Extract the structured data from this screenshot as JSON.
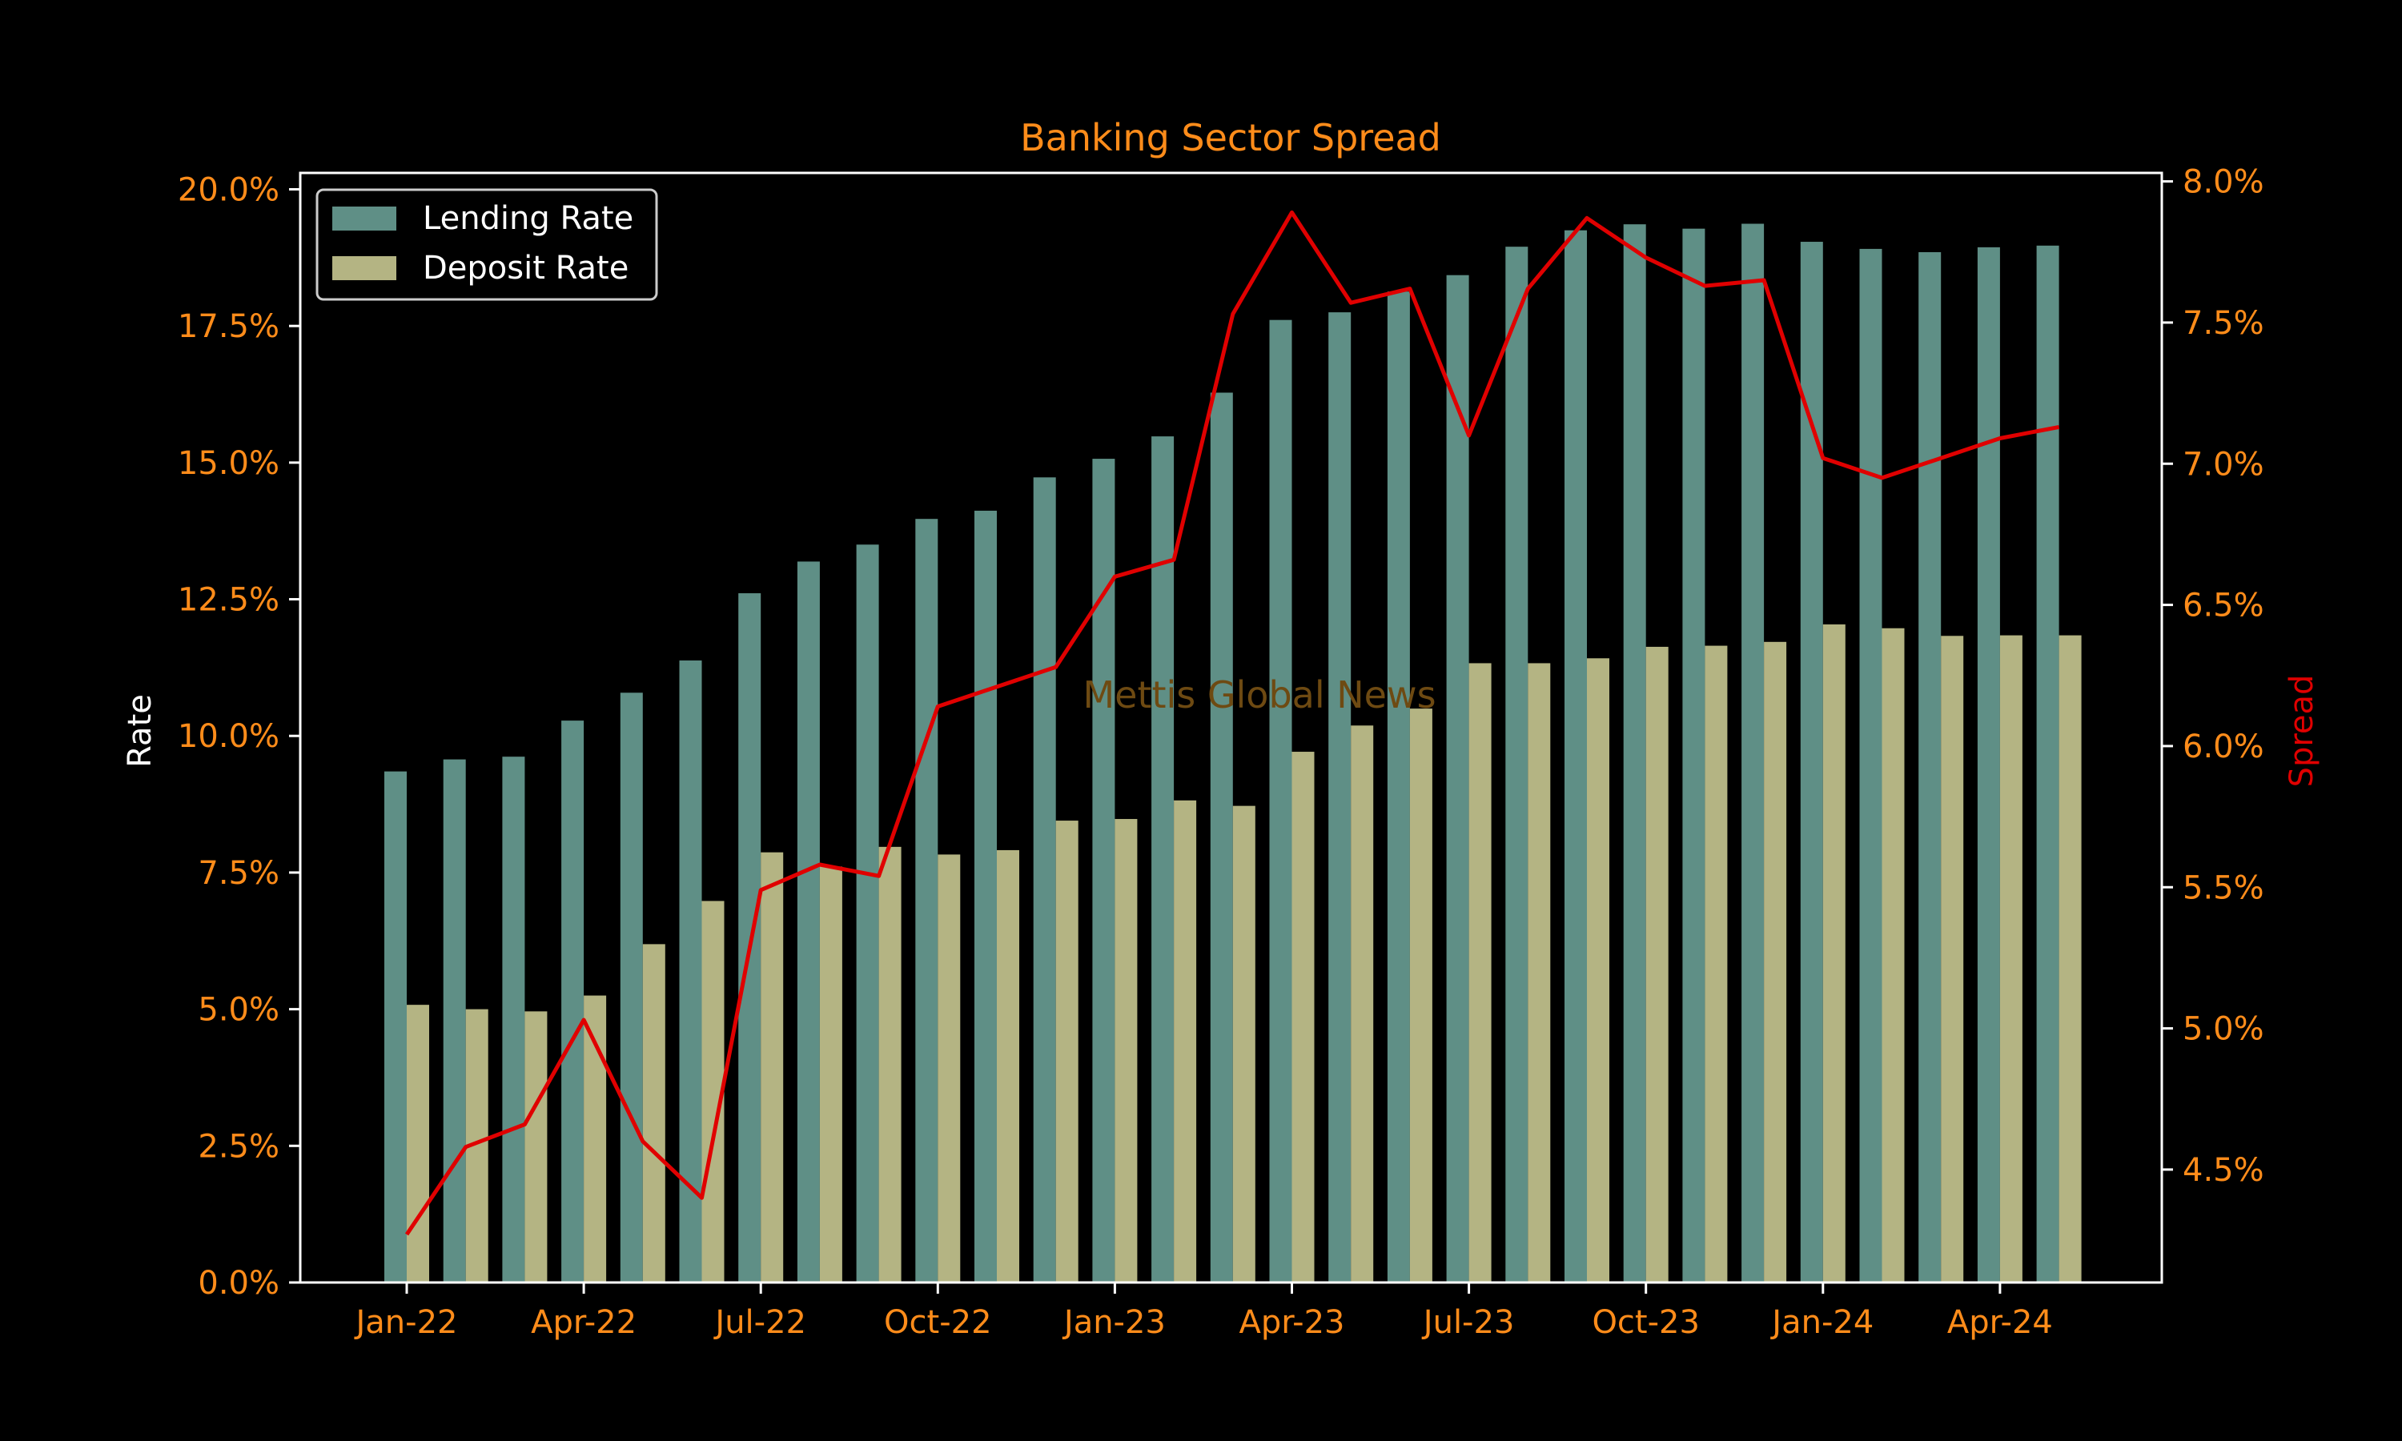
{
  "chart_data": {
    "type": "bar",
    "title": "Banking Sector Spread",
    "ylabel": "Rate",
    "y2label": "Spread",
    "watermark": "Mettis Global News",
    "ylim": [
      0,
      20.3
    ],
    "y2lim": [
      4.1,
      8.03
    ],
    "yticks": [
      "0.0%",
      "2.5%",
      "5.0%",
      "7.5%",
      "10.0%",
      "12.5%",
      "15.0%",
      "17.5%",
      "20.0%"
    ],
    "y2ticks": [
      "4.5%",
      "5.0%",
      "5.5%",
      "6.0%",
      "6.5%",
      "7.0%",
      "7.5%",
      "8.0%"
    ],
    "xticks": [
      "Jan-22",
      "Apr-22",
      "Jul-22",
      "Oct-22",
      "Jan-23",
      "Apr-23",
      "Jul-23",
      "Oct-23",
      "Jan-24",
      "Apr-24"
    ],
    "categories": [
      "Jan-22",
      "Feb-22",
      "Mar-22",
      "Apr-22",
      "May-22",
      "Jun-22",
      "Jul-22",
      "Aug-22",
      "Sep-22",
      "Oct-22",
      "Nov-22",
      "Dec-22",
      "Jan-23",
      "Feb-23",
      "Mar-23",
      "Apr-23",
      "May-23",
      "Jun-23",
      "Jul-23",
      "Aug-23",
      "Sep-23",
      "Oct-23",
      "Nov-23",
      "Dec-23",
      "Jan-24",
      "Feb-24",
      "Mar-24",
      "Apr-24",
      "May-24"
    ],
    "series": [
      {
        "name": "Lending Rate",
        "axis": "left",
        "kind": "bar",
        "color": "#5f8f86",
        "values": [
          9.35,
          9.57,
          9.62,
          10.28,
          10.79,
          11.38,
          12.61,
          13.19,
          13.5,
          13.97,
          14.12,
          14.73,
          15.07,
          15.48,
          16.28,
          17.61,
          17.75,
          18.13,
          18.43,
          18.95,
          19.25,
          19.36,
          19.28,
          19.37,
          19.04,
          18.91,
          18.85,
          18.94,
          18.97
        ]
      },
      {
        "name": "Deposit Rate",
        "axis": "left",
        "kind": "bar",
        "color": "#b4b483",
        "values": [
          5.08,
          5.0,
          4.96,
          5.25,
          6.19,
          6.98,
          7.87,
          7.61,
          7.97,
          7.83,
          7.91,
          8.45,
          8.48,
          8.82,
          8.72,
          9.71,
          10.19,
          10.5,
          11.33,
          11.33,
          11.42,
          11.63,
          11.65,
          11.72,
          12.04,
          11.97,
          11.83,
          11.84,
          11.84
        ]
      },
      {
        "kind": "line",
        "axis": "right",
        "color": "#e00000",
        "values": [
          4.27,
          4.58,
          4.66,
          5.03,
          4.6,
          4.4,
          5.49,
          5.58,
          5.54,
          6.14,
          6.21,
          6.28,
          6.6,
          6.66,
          7.53,
          7.89,
          7.57,
          7.62,
          7.1,
          7.62,
          7.87,
          7.73,
          7.63,
          7.65,
          7.02,
          6.95,
          7.02,
          7.09,
          7.13
        ]
      }
    ],
    "legend": "top-left",
    "grid": false,
    "colors": {
      "background": "#000000",
      "axis_text": "#ff8c1a",
      "frame": "#ffffff",
      "line": "#e00000",
      "watermark": "#6e4a12"
    }
  }
}
